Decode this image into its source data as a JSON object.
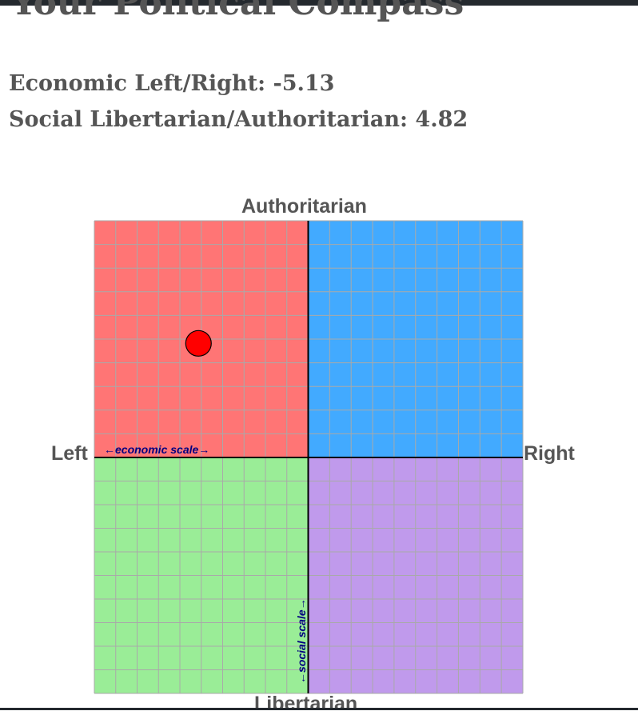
{
  "page": {
    "title": "Your Political Compass",
    "economic_text": "Economic Left/Right: -5.13",
    "social_text": "Social Libertarian/Authoritarian: 4.82"
  },
  "compass": {
    "labels": {
      "top": "Authoritarian",
      "bottom": "Libertarian",
      "left": "Left",
      "right": "Right"
    },
    "economic_scale_label": "←economic scale→",
    "social_scale_label": "←social scale→"
  },
  "chart_data": {
    "type": "scatter",
    "xlim": [
      -10,
      10
    ],
    "ylim": [
      -10,
      10
    ],
    "grid": true,
    "quadrant_colors": {
      "authoritarian_left": "#ff7575",
      "authoritarian_right": "#42aaff",
      "libertarian_left": "#9aed97",
      "libertarian_right": "#c09aec"
    },
    "points": [
      {
        "x": -5.13,
        "y": 4.82,
        "color": "#ff0000"
      }
    ]
  }
}
